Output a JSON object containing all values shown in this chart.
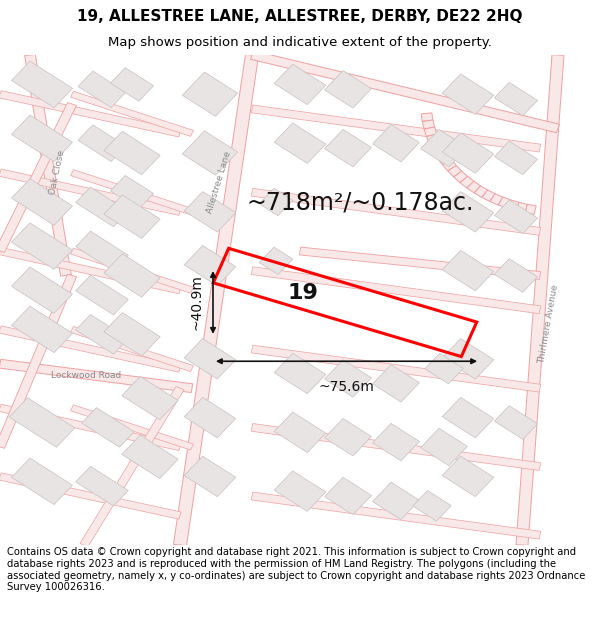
{
  "title_line1": "19, ALLESTREE LANE, ALLESTREE, DERBY, DE22 2HQ",
  "title_line2": "Map shows position and indicative extent of the property.",
  "footer_text": "Contains OS data © Crown copyright and database right 2021. This information is subject to Crown copyright and database rights 2023 and is reproduced with the permission of HM Land Registry. The polygons (including the associated geometry, namely x, y co-ordinates) are subject to Crown copyright and database rights 2023 Ordnance Survey 100026316.",
  "area_label": "~718m²/~0.178ac.",
  "width_label": "~75.6m",
  "height_label": "~40.9m",
  "number_label": "19",
  "bg_color": "#ffffff",
  "map_bg": "#ffffff",
  "road_line_color": "#f0a0a0",
  "road_fill_color": "#f8e8e8",
  "building_fill": "#e8e4e4",
  "building_edge": "#c8c0c0",
  "property_color": "#ff0000",
  "dim_color": "#111111",
  "road_label_color": "#888888",
  "title_fontsize": 11,
  "subtitle_fontsize": 9.5,
  "footer_fontsize": 7.2,
  "area_fontsize": 17,
  "number_fontsize": 16,
  "dim_fontsize": 10
}
